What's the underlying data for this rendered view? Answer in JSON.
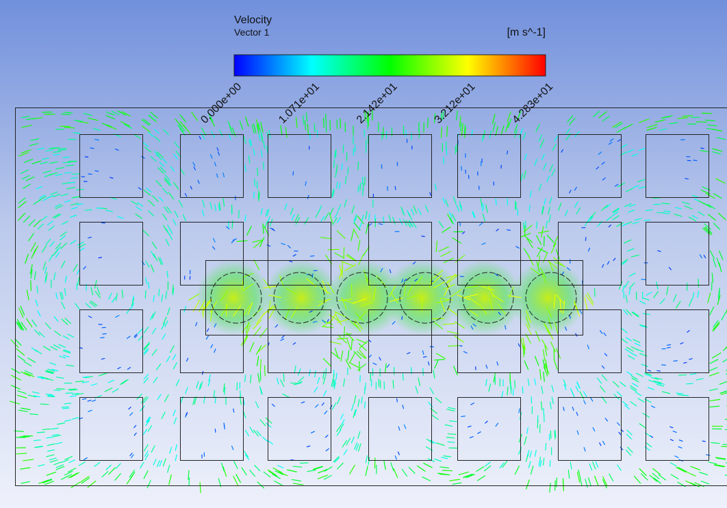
{
  "legend": {
    "title": "Velocity",
    "subtitle": "Vector 1",
    "unit": "[m s^-1]",
    "ticks": [
      "0.000e+00",
      "1.071e+01",
      "2.142e+01",
      "3.212e+01",
      "4.283e+01"
    ]
  }
}
